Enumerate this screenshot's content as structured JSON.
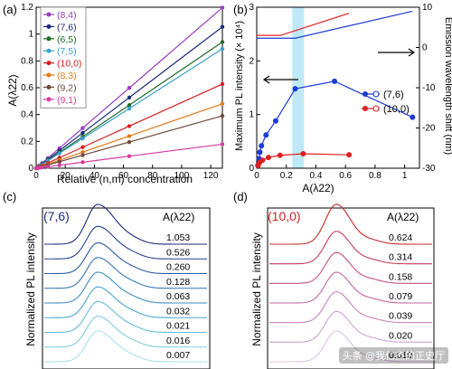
{
  "chart_data": [
    {
      "panel": "(a)",
      "type": "line",
      "xlabel": "Relative (n,m) concentration",
      "ylabel": "A(λ22)",
      "xlim": [
        0,
        128
      ],
      "ylim": [
        0,
        1.2
      ],
      "xticks": [
        0,
        20,
        40,
        60,
        80,
        100,
        120
      ],
      "yticks": [
        0,
        0.2,
        0.4,
        0.6,
        0.8,
        1.0,
        1.2
      ],
      "x": [
        0,
        1,
        2,
        4,
        8,
        16,
        32,
        64,
        128
      ],
      "legend": "top-left",
      "series": [
        {
          "name": "(8,4)",
          "color": "#9a3fbf",
          "slope": 0.00935
        },
        {
          "name": "(7,6)",
          "color": "#1c2a7a",
          "slope": 0.00823
        },
        {
          "name": "(6,5)",
          "color": "#1f6b2a",
          "slope": 0.00735
        },
        {
          "name": "(7,5)",
          "color": "#3aa0d0",
          "slope": 0.00695
        },
        {
          "name": "(10,0)",
          "color": "#d41f1f",
          "slope": 0.0049
        },
        {
          "name": "(8,3)",
          "color": "#e07a1a",
          "slope": 0.00375
        },
        {
          "name": "(9,2)",
          "color": "#6e4a3a",
          "slope": 0.00305
        },
        {
          "name": "(9,1)",
          "color": "#d63ba0",
          "slope": 0.0014
        }
      ]
    },
    {
      "panel": "(b)",
      "type": "line",
      "xlabel": "A(λ22)",
      "ylabel": "Maximum PL intensity (× 10⁴)",
      "ylabel_right": "Emission wavelength shift (nm)",
      "xlim": [
        0,
        1.1
      ],
      "ylim": [
        0,
        3
      ],
      "ylim_right": [
        -30,
        10
      ],
      "xticks": [
        0,
        0.2,
        0.4,
        0.6,
        0.8,
        1.0
      ],
      "yticks": [
        0,
        1,
        2,
        3
      ],
      "yticks_right": [
        -30,
        -20,
        -10,
        0,
        10
      ],
      "highlight_band": [
        0.24,
        0.32
      ],
      "legend": "middle-right",
      "series": [
        {
          "name": "(7,6)",
          "color": "#1a3bd6",
          "intensity": [
            [
              0.007,
              0.05
            ],
            [
              0.016,
              0.18
            ],
            [
              0.021,
              0.3
            ],
            [
              0.032,
              0.42
            ],
            [
              0.063,
              0.62
            ],
            [
              0.128,
              0.88
            ],
            [
              0.26,
              1.48
            ],
            [
              0.526,
              1.62
            ],
            [
              1.053,
              0.95
            ]
          ],
          "shift": [
            [
              0.0,
              2.3
            ],
            [
              0.26,
              2.3
            ],
            [
              1.053,
              9.0
            ]
          ]
        },
        {
          "name": "(10,0)",
          "color": "#e02020",
          "intensity": [
            [
              0.01,
              0.05
            ],
            [
              0.02,
              0.11
            ],
            [
              0.039,
              0.15
            ],
            [
              0.079,
              0.2
            ],
            [
              0.158,
              0.24
            ],
            [
              0.314,
              0.27
            ],
            [
              0.624,
              0.25
            ]
          ],
          "shift": [
            [
              0.0,
              3.0
            ],
            [
              0.16,
              3.0
            ],
            [
              0.624,
              8.5
            ]
          ]
        }
      ]
    },
    {
      "panel": "(c)",
      "type": "line",
      "title": "(7,6)",
      "ylabel": "Normalized PL intensity",
      "label_header": "A(λ22)",
      "labels": [
        "1.053",
        "0.526",
        "0.260",
        "0.128",
        "0.063",
        "0.032",
        "0.021",
        "0.016",
        "0.007"
      ],
      "colors": [
        "#1c2a7a",
        "#24438f",
        "#2c5ca3",
        "#3575b5",
        "#3d8ec2",
        "#4ba6cf",
        "#63bcd8",
        "#80cfe0",
        "#a8e0ea"
      ]
    },
    {
      "panel": "(d)",
      "type": "line",
      "title": "(10,0)",
      "ylabel": "Normalized PL intensity",
      "label_header": "A(λ22)",
      "labels": [
        "0.624",
        "0.314",
        "0.158",
        "0.079",
        "0.039",
        "0.020",
        "0.010"
      ],
      "colors": [
        "#c42b2b",
        "#c53d5e",
        "#c55080",
        "#c468a0",
        "#c784bb",
        "#cfa3d2",
        "#dcc4e4"
      ]
    }
  ],
  "watermark": "头条 @我仁杰的正史厅"
}
